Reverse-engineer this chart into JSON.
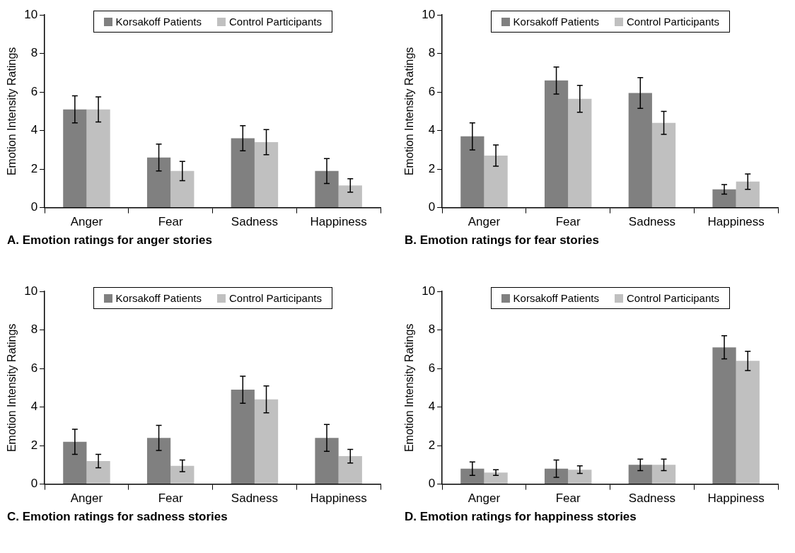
{
  "chart_data": [
    {
      "type": "bar",
      "title": "A. Emotion ratings for anger stories",
      "ylabel": "Emotion Intensity Ratings",
      "categories": [
        "Anger",
        "Fear",
        "Sadness",
        "Happiness"
      ],
      "ylim": [
        0,
        10
      ],
      "yticks": [
        0,
        2,
        4,
        6,
        8,
        10
      ],
      "grid": false,
      "legend": "top",
      "series": [
        {
          "name": "Korsakoff Patients",
          "color": "#808080",
          "values": [
            5.1,
            2.6,
            3.6,
            1.9
          ],
          "errors": [
            0.7,
            0.7,
            0.65,
            0.65
          ]
        },
        {
          "name": "Control Participants",
          "color": "#c0c0c0",
          "values": [
            5.1,
            1.9,
            3.4,
            1.15
          ],
          "errors": [
            0.65,
            0.5,
            0.65,
            0.35
          ]
        }
      ]
    },
    {
      "type": "bar",
      "title": "B. Emotion ratings for fear stories",
      "ylabel": "Emotion Intensity Ratings",
      "categories": [
        "Anger",
        "Fear",
        "Sadness",
        "Happiness"
      ],
      "ylim": [
        0,
        10
      ],
      "yticks": [
        0,
        2,
        4,
        6,
        8,
        10
      ],
      "grid": false,
      "legend": "top",
      "series": [
        {
          "name": "Korsakoff Patients",
          "color": "#808080",
          "values": [
            3.7,
            6.6,
            5.95,
            0.95
          ],
          "errors": [
            0.7,
            0.7,
            0.8,
            0.25
          ]
        },
        {
          "name": "Control Participants",
          "color": "#c0c0c0",
          "values": [
            2.7,
            5.65,
            4.4,
            1.35
          ],
          "errors": [
            0.55,
            0.7,
            0.6,
            0.4
          ]
        }
      ]
    },
    {
      "type": "bar",
      "title": "C. Emotion ratings for sadness stories",
      "ylabel": "Emotion Intensity Ratings",
      "categories": [
        "Anger",
        "Fear",
        "Sadness",
        "Happiness"
      ],
      "ylim": [
        0,
        10
      ],
      "yticks": [
        0,
        2,
        4,
        6,
        8,
        10
      ],
      "grid": false,
      "legend": "top",
      "series": [
        {
          "name": "Korsakoff Patients",
          "color": "#808080",
          "values": [
            2.2,
            2.4,
            4.9,
            2.4
          ],
          "errors": [
            0.65,
            0.65,
            0.7,
            0.7
          ]
        },
        {
          "name": "Control Participants",
          "color": "#c0c0c0",
          "values": [
            1.2,
            0.95,
            4.4,
            1.45
          ],
          "errors": [
            0.35,
            0.3,
            0.7,
            0.35
          ]
        }
      ]
    },
    {
      "type": "bar",
      "title": "D. Emotion ratings for happiness stories",
      "ylabel": "Emotion Intensity Ratings",
      "categories": [
        "Anger",
        "Fear",
        "Sadness",
        "Happiness"
      ],
      "ylim": [
        0,
        10
      ],
      "yticks": [
        0,
        2,
        4,
        6,
        8,
        10
      ],
      "grid": false,
      "legend": "top",
      "series": [
        {
          "name": "Korsakoff Patients",
          "color": "#808080",
          "values": [
            0.8,
            0.8,
            1.0,
            7.1
          ],
          "errors": [
            0.35,
            0.45,
            0.3,
            0.6
          ]
        },
        {
          "name": "Control Participants",
          "color": "#c0c0c0",
          "values": [
            0.6,
            0.75,
            1.0,
            6.4
          ],
          "errors": [
            0.15,
            0.2,
            0.3,
            0.5
          ]
        }
      ]
    }
  ]
}
